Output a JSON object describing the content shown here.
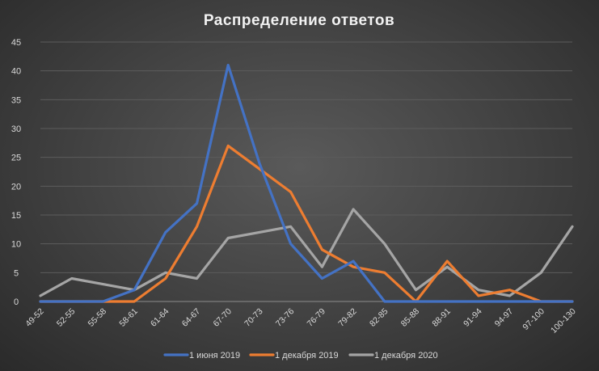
{
  "chart_data": {
    "type": "line",
    "title": "Распределение  ответов",
    "xlabel": "",
    "ylabel": "",
    "categories": [
      "49-52",
      "52-55",
      "55-58",
      "58-61",
      "61-64",
      "64-67",
      "67-70",
      "70-73",
      "73-76",
      "76-79",
      "79-82",
      "82-85",
      "85-88",
      "88-91",
      "91-94",
      "94-97",
      "97-100",
      "100-130"
    ],
    "ylim": [
      0,
      45
    ],
    "yticks": [
      0,
      5,
      10,
      15,
      20,
      25,
      30,
      35,
      40,
      45
    ],
    "grid": true,
    "legend_position": "bottom",
    "series": [
      {
        "name": "1 июня 2019",
        "color": "#4472c4",
        "values": [
          0,
          0,
          0,
          2,
          12,
          17,
          41,
          24,
          10,
          4,
          7,
          0,
          0,
          0,
          0,
          0,
          0,
          0
        ]
      },
      {
        "name": "1 декабря 2019",
        "color": "#ed7d31",
        "values": [
          0,
          0,
          0,
          0,
          4,
          13,
          27,
          23,
          19,
          9,
          6,
          5,
          0,
          7,
          1,
          2,
          0,
          0
        ]
      },
      {
        "name": "1 декабря 2020",
        "color": "#a5a5a5",
        "values": [
          1,
          4,
          3,
          2,
          5,
          4,
          11,
          12,
          13,
          6,
          16,
          10,
          2,
          6,
          2,
          1,
          5,
          13
        ]
      }
    ]
  }
}
